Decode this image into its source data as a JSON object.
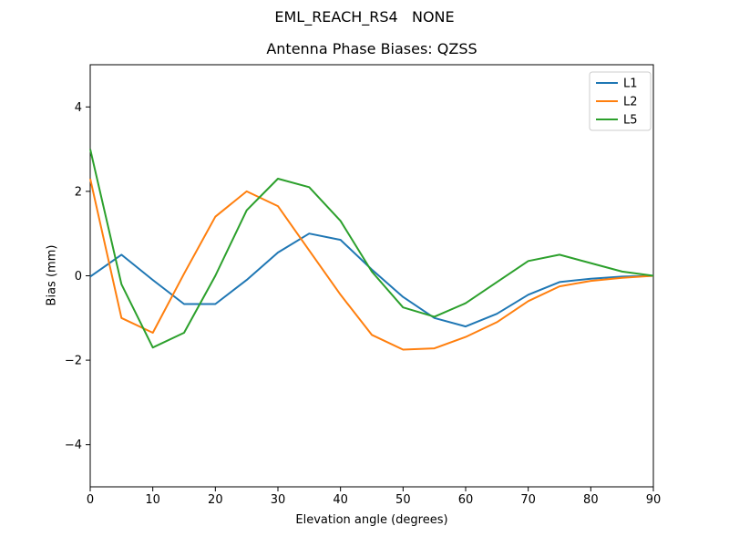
{
  "chart_data": {
    "type": "line",
    "suptitle": "EML_REACH_RS4   NONE",
    "title": "Antenna Phase Biases: QZSS",
    "xlabel": "Elevation angle (degrees)",
    "ylabel": "Bias (mm)",
    "xlim": [
      0,
      90
    ],
    "ylim": [
      -5,
      5
    ],
    "xticks": [
      0,
      10,
      20,
      30,
      40,
      50,
      60,
      70,
      80,
      90
    ],
    "yticks": [
      -4,
      -2,
      0,
      2,
      4
    ],
    "grid": false,
    "legend_position": "upper right",
    "x": [
      0,
      5,
      10,
      15,
      20,
      25,
      30,
      35,
      40,
      45,
      50,
      55,
      60,
      65,
      70,
      75,
      80,
      85,
      90
    ],
    "series": [
      {
        "name": "L1",
        "color": "#1f77b4",
        "values": [
          -0.02,
          0.5,
          -0.1,
          -0.67,
          -0.67,
          -0.1,
          0.55,
          1.0,
          0.85,
          0.15,
          -0.5,
          -1.0,
          -1.2,
          -0.9,
          -0.45,
          -0.15,
          -0.07,
          -0.02,
          0.0
        ]
      },
      {
        "name": "L2",
        "color": "#ff7f0e",
        "values": [
          2.3,
          -1.0,
          -1.35,
          0.05,
          1.4,
          2.0,
          1.65,
          0.6,
          -0.45,
          -1.4,
          -1.75,
          -1.72,
          -1.45,
          -1.1,
          -0.6,
          -0.25,
          -0.12,
          -0.05,
          0.0
        ]
      },
      {
        "name": "L5",
        "color": "#2ca02c",
        "values": [
          3.0,
          -0.2,
          -1.7,
          -1.35,
          0.0,
          1.55,
          2.3,
          2.1,
          1.3,
          0.1,
          -0.75,
          -0.97,
          -0.65,
          -0.15,
          0.35,
          0.5,
          0.3,
          0.1,
          0.0
        ]
      }
    ]
  }
}
